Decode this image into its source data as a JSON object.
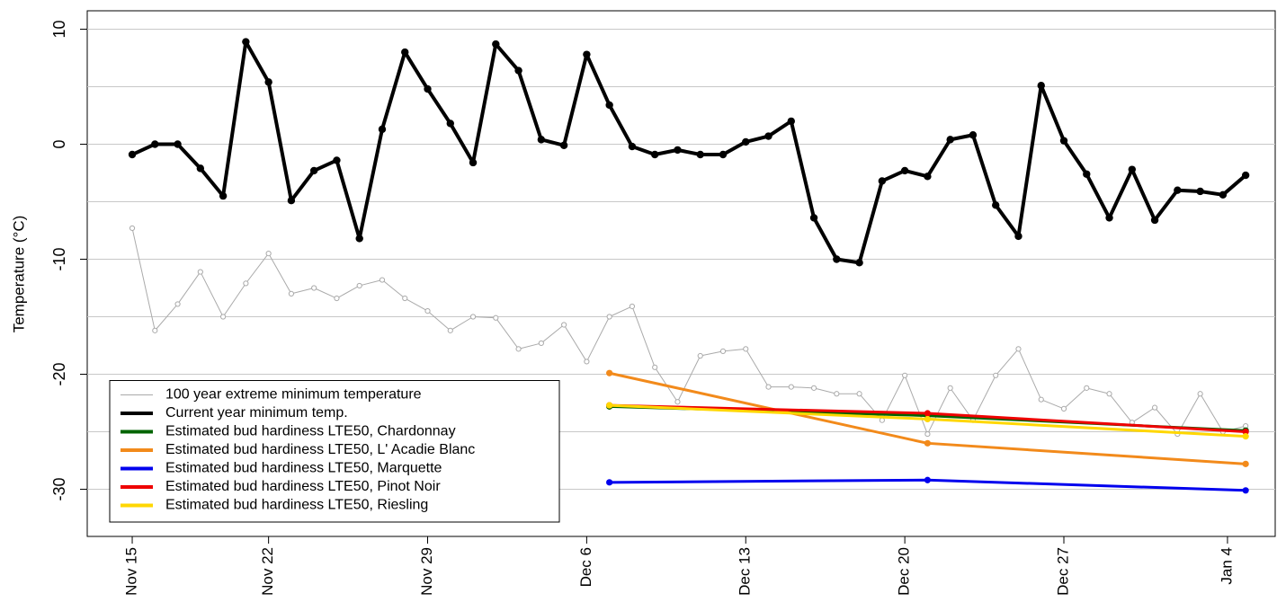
{
  "chart_data": {
    "type": "line",
    "ylabel": "Temperature (°C)",
    "xlim": [
      -1.98,
      50.3
    ],
    "ylim": [
      -34.1,
      11.6
    ],
    "xticks": [
      {
        "value": 0,
        "label": "Nov 15"
      },
      {
        "value": 6,
        "label": "Nov 22"
      },
      {
        "value": 13,
        "label": "Nov 29"
      },
      {
        "value": 20,
        "label": "Dec 6"
      },
      {
        "value": 27,
        "label": "Dec 13"
      },
      {
        "value": 34,
        "label": "Dec 20"
      },
      {
        "value": 41,
        "label": "Dec 27"
      },
      {
        "value": 48.2,
        "label": "Jan 4"
      }
    ],
    "yticks": [
      -30,
      -20,
      -10,
      0,
      10
    ],
    "grid": [
      -30,
      -25,
      -20,
      -15,
      -10,
      -5,
      0,
      5,
      10
    ],
    "legend": "bottom-left",
    "series": [
      {
        "name": "100 year extreme minimum temperature",
        "color": "#aaaaaa",
        "line_width": 1,
        "marker": "open",
        "x": [
          0,
          1,
          2,
          3,
          4,
          5,
          6,
          7,
          8,
          9,
          10,
          11,
          12,
          13,
          14,
          15,
          16,
          17,
          18,
          19,
          20,
          21,
          22,
          23,
          24,
          25,
          26,
          27,
          28,
          29,
          30,
          31,
          32,
          33,
          34,
          35,
          36,
          37,
          38,
          39,
          40,
          41,
          42,
          43,
          44,
          45,
          46,
          47,
          48,
          49
        ],
        "values": [
          -7.3,
          -16.2,
          -13.9,
          -11.1,
          -15.0,
          -12.1,
          -9.5,
          -13.0,
          -12.5,
          -13.4,
          -12.3,
          -11.8,
          -13.4,
          -14.5,
          -16.2,
          -15.0,
          -15.1,
          -17.8,
          -17.3,
          -15.7,
          -18.9,
          -15.0,
          -14.1,
          -19.4,
          -22.4,
          -18.4,
          -18.0,
          -17.8,
          -21.1,
          -21.1,
          -21.2,
          -21.7,
          -21.7,
          -24.0,
          -20.1,
          -25.2,
          -21.2,
          -24.0,
          -20.1,
          -17.8,
          -22.2,
          -23.0,
          -21.2,
          -21.7,
          -24.2,
          -22.9,
          -25.2,
          -21.7,
          -25.0,
          -24.5
        ]
      },
      {
        "name": "Current year minimum temp.",
        "color": "#000000",
        "line_width": 4,
        "marker": "filled",
        "x": [
          0,
          1,
          2,
          3,
          4,
          5,
          6,
          7,
          8,
          9,
          10,
          11,
          12,
          13,
          14,
          15,
          16,
          17,
          18,
          19,
          20,
          21,
          22,
          23,
          24,
          25,
          26,
          27,
          28,
          29,
          30,
          31,
          32,
          33,
          34,
          35,
          36,
          37,
          38,
          39,
          40,
          41,
          42,
          43,
          44,
          45,
          46,
          47,
          48,
          49
        ],
        "values": [
          -0.9,
          0.0,
          0.0,
          -2.1,
          -4.5,
          8.9,
          5.4,
          -4.9,
          -2.3,
          -1.4,
          -8.2,
          1.3,
          8.0,
          4.8,
          1.8,
          -1.6,
          8.7,
          6.4,
          0.4,
          -0.1,
          7.8,
          3.4,
          -0.2,
          -0.9,
          -0.5,
          -0.9,
          -0.9,
          0.2,
          0.7,
          2.0,
          -6.4,
          -10.0,
          -10.3,
          -3.2,
          -2.3,
          -2.8,
          0.4,
          0.8,
          -5.3,
          -8.0,
          5.1,
          0.3,
          -2.6,
          -6.4,
          -2.2,
          -6.6,
          -4.0,
          -4.1,
          -4.4,
          -2.7
        ]
      },
      {
        "name": "Estimated bud hardiness LTE50, Chardonnay",
        "color": "#006400",
        "line_width": 3,
        "marker": "filled",
        "x": [
          21,
          35,
          49
        ],
        "values": [
          -22.8,
          -23.6,
          -24.9
        ]
      },
      {
        "name": "Estimated bud hardiness LTE50, L' Acadie Blanc",
        "color": "#f28a1b",
        "line_width": 3,
        "marker": "filled",
        "x": [
          21,
          35,
          49
        ],
        "values": [
          -19.9,
          -26.0,
          -27.8
        ]
      },
      {
        "name": "Estimated bud hardiness LTE50, Marquette",
        "color": "#0000ee",
        "line_width": 3,
        "marker": "filled",
        "x": [
          21,
          35,
          49
        ],
        "values": [
          -29.4,
          -29.2,
          -30.1
        ]
      },
      {
        "name": "Estimated bud hardiness LTE50, Pinot Noir",
        "color": "#ee0000",
        "line_width": 3,
        "marker": "filled",
        "x": [
          21,
          35,
          49
        ],
        "values": [
          -22.7,
          -23.4,
          -25.0
        ]
      },
      {
        "name": "Estimated bud hardiness LTE50, Riesling",
        "color": "#ffd700",
        "line_width": 3,
        "marker": "filled",
        "x": [
          21,
          35,
          49
        ],
        "values": [
          -22.7,
          -23.9,
          -25.4
        ]
      }
    ]
  }
}
